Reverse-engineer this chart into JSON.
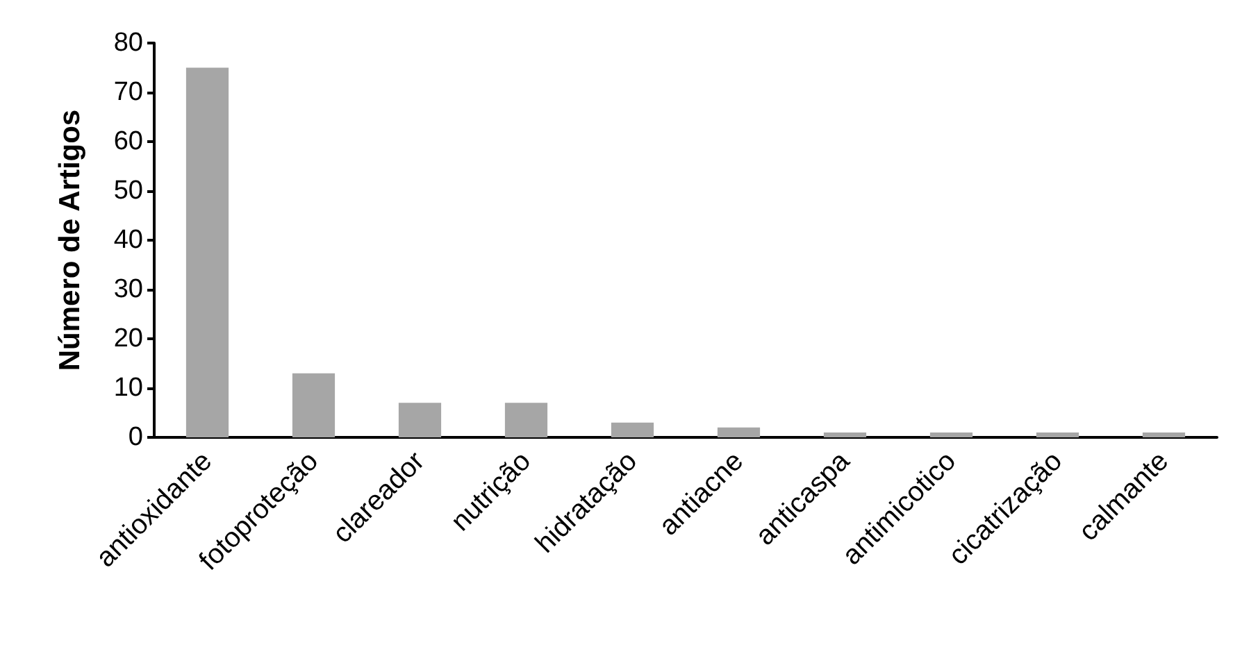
{
  "chart_data": {
    "type": "bar",
    "ylabel": "Número de Artigos",
    "categories": [
      "antioxidante",
      "fotoproteção",
      "clareador",
      "nutrição",
      "hidratação",
      "antiacne",
      "anticaspa",
      "antimicotico",
      "cicatrização",
      "calmante"
    ],
    "values": [
      75,
      13,
      7,
      7,
      3,
      2,
      1,
      1,
      1,
      1
    ],
    "color": "#a6a6a6",
    "ylim": [
      0,
      80
    ],
    "yticks": [
      0,
      10,
      20,
      30,
      40,
      50,
      60,
      70,
      80
    ],
    "grid": false
  }
}
